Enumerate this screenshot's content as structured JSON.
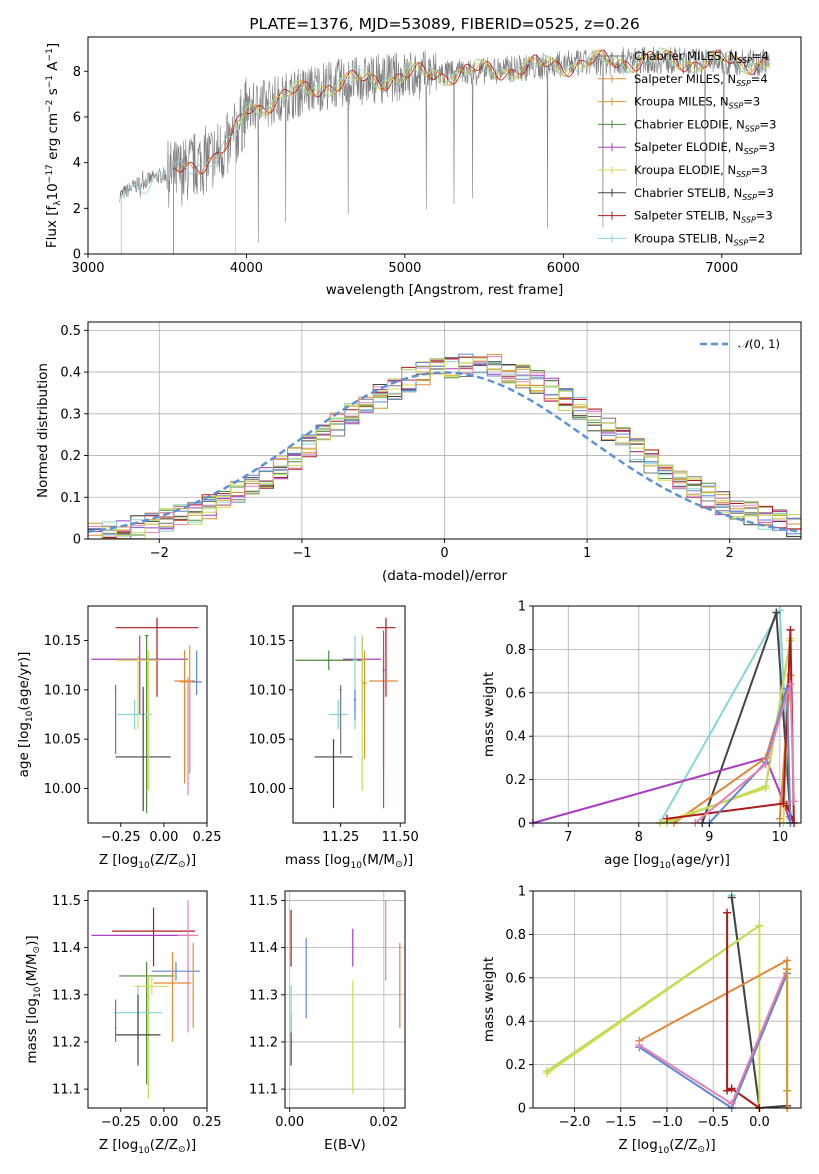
{
  "figure": {
    "title": "PLATE=1376, MJD=53089, FIBERID=0525, z=0.26"
  },
  "colors": {
    "Chabrier MILES": "#777777",
    "Salpeter MILES": "#e0893a",
    "Kroupa MILES": "#d49a26",
    "Chabrier ELODIE": "#4f8a3a",
    "Salpeter ELODIE": "#a93cc0",
    "Kroupa ELODIE": "#dada50",
    "Chabrier STELIB": "#444444",
    "Salpeter STELIB": "#b01a1a",
    "Kroupa STELIB": "#88d4d8",
    "extra_blue": "#5e86d4",
    "extra_pink": "#e77fb0",
    "extra_lime": "#bedc5a",
    "normal_curve": "#5b8fd6"
  },
  "chart_data": [
    {
      "id": "spectrum",
      "type": "line",
      "title": "PLATE=1376, MJD=53089, FIBERID=0525, z=0.26",
      "xlabel": "wavelength [Angstrom, rest frame]",
      "ylabel_parts": [
        "Flux [",
        "f",
        "λ",
        "10",
        "−17",
        " erg cm",
        "−2",
        " s",
        "−1",
        " A",
        "−1",
        "]"
      ],
      "xlim": [
        3000,
        7500
      ],
      "ylim": [
        0,
        9.5
      ],
      "xticks": [
        3000,
        4000,
        5000,
        6000,
        7000
      ],
      "yticks": [
        0,
        2,
        4,
        6,
        8
      ],
      "grid": false,
      "legend_position": "right",
      "legend": [
        {
          "name": "Chabrier MILES",
          "n": "4"
        },
        {
          "name": "Salpeter MILES",
          "n": "4"
        },
        {
          "name": "Kroupa MILES",
          "n": "3"
        },
        {
          "name": "Chabrier ELODIE",
          "n": "3"
        },
        {
          "name": "Salpeter ELODIE",
          "n": "3"
        },
        {
          "name": "Kroupa ELODIE",
          "n": "3"
        },
        {
          "name": "Chabrier STELIB",
          "n": "3"
        },
        {
          "name": "Salpeter STELIB",
          "n": "3"
        },
        {
          "name": "Kroupa STELIB",
          "n": "2"
        }
      ],
      "continuum": [
        [
          3210,
          2.6
        ],
        [
          3300,
          3.0
        ],
        [
          3400,
          3.3
        ],
        [
          3500,
          3.5
        ],
        [
          3600,
          3.6
        ],
        [
          3700,
          4.0
        ],
        [
          3800,
          4.3
        ],
        [
          3900,
          4.8
        ],
        [
          4000,
          6.3
        ],
        [
          4200,
          6.8
        ],
        [
          4500,
          7.4
        ],
        [
          5000,
          7.8
        ],
        [
          5500,
          8.0
        ],
        [
          6000,
          8.3
        ],
        [
          6500,
          8.5
        ],
        [
          7000,
          8.4
        ],
        [
          7300,
          8.4
        ]
      ],
      "spectrum_start": [
        3210,
        3540,
        3930,
        3200
      ],
      "spectrum_end": 7300
    },
    {
      "id": "residual-histogram",
      "type": "step",
      "xlabel": "(data-model)/error",
      "ylabel": "Normed distribution",
      "xlim": [
        -2.5,
        2.5
      ],
      "ylim": [
        0,
        0.52
      ],
      "xticks": [
        -2,
        -1,
        0,
        1,
        2
      ],
      "yticks": [
        0.0,
        0.1,
        0.2,
        0.3,
        0.4,
        0.5
      ],
      "grid": true,
      "legend_position": "upper right",
      "legend": [
        {
          "name_parts": [
            "𝒩",
            "(0, 1)"
          ],
          "style": "dashed"
        }
      ],
      "bin_width": 0.1,
      "x_start": -2.5
    },
    {
      "id": "age-vs-metallicity",
      "type": "errorbar",
      "xlabel_parts": [
        "Z [log",
        "10",
        "(Z/Z",
        "⊙",
        ")]"
      ],
      "ylabel_parts": [
        "age  [log",
        "10",
        "(age/yr)]"
      ],
      "xlim": [
        -0.44,
        0.25
      ],
      "ylim": [
        9.965,
        10.185
      ],
      "xticks": [
        -0.25,
        0.0,
        0.25
      ],
      "xtick_labels": [
        "−0.25",
        "0.00",
        "0.25"
      ],
      "yticks": [
        10.0,
        10.05,
        10.1,
        10.15
      ],
      "ytick_labels": [
        "10.00",
        "10.05",
        "10.10",
        "10.15"
      ],
      "grid": false,
      "points": [
        {
          "x": -0.04,
          "y": 10.163,
          "xerr": 0.24,
          "ylo": 10.093,
          "yhi": 10.173,
          "c": "Salpeter STELIB"
        },
        {
          "x": -0.14,
          "y": 10.131,
          "xerr": 0.28,
          "ylo": 10.075,
          "yhi": 10.155,
          "c": "Salpeter ELODIE"
        },
        {
          "x": -0.1,
          "y": 10.155,
          "xerr": 0.01,
          "ylo": 9.975,
          "yhi": 10.155,
          "c": "Chabrier ELODIE"
        },
        {
          "x": -0.15,
          "y": 10.13,
          "xerr": 0.13,
          "ylo": 10.06,
          "yhi": 10.135,
          "c": "Kroupa ELODIE"
        },
        {
          "x": 0.15,
          "y": 10.108,
          "xerr": 0.06,
          "ylo": 10.015,
          "yhi": 10.145,
          "c": "Kroupa MILES"
        },
        {
          "x": 0.12,
          "y": 10.109,
          "xerr": 0.06,
          "ylo": 10.005,
          "yhi": 10.14,
          "c": "Salpeter MILES"
        },
        {
          "x": 0.19,
          "y": 10.108,
          "xerr": 0.03,
          "ylo": 10.095,
          "yhi": 10.14,
          "c": "extra_blue"
        },
        {
          "x": -0.17,
          "y": 10.075,
          "xerr": 0.1,
          "ylo": 10.06,
          "yhi": 10.09,
          "c": "Kroupa STELIB"
        },
        {
          "x": -0.28,
          "y": 10.1,
          "xerr": 0.005,
          "ylo": 10.035,
          "yhi": 10.105,
          "c": "Chabrier MILES"
        },
        {
          "x": -0.12,
          "y": 10.032,
          "xerr": 0.16,
          "ylo": 9.977,
          "yhi": 10.103,
          "c": "Chabrier STELIB"
        },
        {
          "x": 0.14,
          "y": 10.109,
          "xerr": 0.005,
          "ylo": 9.993,
          "yhi": 10.113,
          "c": "extra_pink"
        },
        {
          "x": -0.09,
          "y": 10.103,
          "xerr": 0.005,
          "ylo": 9.998,
          "yhi": 10.14,
          "c": "extra_lime"
        }
      ]
    },
    {
      "id": "age-vs-mass",
      "type": "errorbar",
      "xlabel_parts": [
        "mass [log",
        "10",
        "(M/M",
        "⊙",
        ")]"
      ],
      "xlim": [
        11.05,
        11.52
      ],
      "ylim": [
        9.965,
        10.185
      ],
      "xticks": [
        11.25,
        11.5
      ],
      "xtick_labels": [
        "11.25",
        "11.50"
      ],
      "yticks": [
        10.0,
        10.05,
        10.1,
        10.15
      ],
      "ytick_labels": [
        "10.00",
        "10.05",
        "10.10",
        "10.15"
      ],
      "grid": false,
      "points": [
        {
          "x": 11.44,
          "y": 10.163,
          "xerr": 0.04,
          "ylo": 10.093,
          "yhi": 10.173,
          "c": "Salpeter STELIB"
        },
        {
          "x": 11.34,
          "y": 10.131,
          "xerr": 0.08,
          "ylo": 10.075,
          "yhi": 10.155,
          "c": "Salpeter ELODIE"
        },
        {
          "x": 11.2,
          "y": 10.13,
          "xerr": 0.14,
          "ylo": 10.12,
          "yhi": 10.14,
          "c": "Chabrier ELODIE"
        },
        {
          "x": 11.31,
          "y": 10.13,
          "xerr": 0.01,
          "ylo": 10.06,
          "yhi": 10.155,
          "c": "Kroupa STELIB"
        },
        {
          "x": 11.43,
          "y": 10.109,
          "xerr": 0.06,
          "ylo": 10.02,
          "yhi": 10.14,
          "c": "Salpeter MILES"
        },
        {
          "x": 11.35,
          "y": 10.107,
          "xerr": 0.01,
          "ylo": 10.03,
          "yhi": 10.14,
          "c": "Kroupa MILES"
        },
        {
          "x": 11.24,
          "y": 10.075,
          "xerr": 0.04,
          "ylo": 10.06,
          "yhi": 10.09,
          "c": "Kroupa STELIB"
        },
        {
          "x": 11.25,
          "y": 10.1,
          "xerr": 0.005,
          "ylo": 10.035,
          "yhi": 10.105,
          "c": "Chabrier MILES"
        },
        {
          "x": 11.22,
          "y": 10.032,
          "xerr": 0.08,
          "ylo": 9.98,
          "yhi": 10.05,
          "c": "Chabrier STELIB"
        },
        {
          "x": 11.34,
          "y": 10.11,
          "xerr": 0.005,
          "ylo": 9.998,
          "yhi": 10.155,
          "c": "extra_lime"
        },
        {
          "x": 11.43,
          "y": 10.12,
          "xerr": 0.005,
          "ylo": 9.98,
          "yhi": 10.16,
          "c": "Salpeter ELODIE"
        },
        {
          "x": 11.31,
          "y": 10.09,
          "xerr": 0.005,
          "ylo": 10.07,
          "yhi": 10.1,
          "c": "extra_blue"
        }
      ]
    },
    {
      "id": "mass-weight-vs-age",
      "type": "line",
      "xlabel_parts": [
        "age  [log",
        "10",
        "(age/yr)]"
      ],
      "ylabel": "mass weight",
      "xlim": [
        6.5,
        10.3
      ],
      "ylim": [
        0,
        1
      ],
      "xticks": [
        7,
        8,
        9,
        10
      ],
      "yticks": [
        0.0,
        0.2,
        0.4,
        0.6,
        0.8,
        1.0
      ],
      "grid": true,
      "series": [
        {
          "c": "Kroupa STELIB",
          "x": [
            8.3,
            10.0,
            10.15
          ],
          "y": [
            0.0,
            0.98,
            0.02
          ]
        },
        {
          "c": "Chabrier STELIB",
          "x": [
            8.9,
            9.95,
            10.15
          ],
          "y": [
            0.0,
            0.97,
            0.03
          ]
        },
        {
          "c": "Salpeter ELODIE",
          "x": [
            6.5,
            9.8,
            10.05,
            10.15
          ],
          "y": [
            0.0,
            0.3,
            0.1,
            0.0
          ]
        },
        {
          "c": "Salpeter MILES",
          "x": [
            8.5,
            9.8,
            10.15,
            10.0
          ],
          "y": [
            0.0,
            0.3,
            0.68,
            0.02
          ]
        },
        {
          "c": "Kroupa ELODIE",
          "x": [
            8.3,
            9.8,
            10.15,
            10.05
          ],
          "y": [
            0.0,
            0.16,
            0.85,
            0.0
          ]
        },
        {
          "c": "extra_lime",
          "x": [
            8.4,
            9.8,
            10.15
          ],
          "y": [
            0.0,
            0.17,
            0.84
          ]
        },
        {
          "c": "Salpeter STELIB",
          "x": [
            8.4,
            10.05,
            10.15,
            10.2,
            10.1
          ],
          "y": [
            0.02,
            0.09,
            0.89,
            0.0,
            0.08
          ]
        },
        {
          "c": "extra_blue",
          "x": [
            9.0,
            9.8,
            10.1,
            10.15
          ],
          "y": [
            0.0,
            0.28,
            0.62,
            0.0
          ]
        },
        {
          "c": "extra_pink",
          "x": [
            8.8,
            9.8,
            10.15,
            10.2
          ],
          "y": [
            0.0,
            0.27,
            0.64,
            0.1
          ]
        }
      ]
    },
    {
      "id": "mass-vs-metallicity",
      "type": "errorbar",
      "xlabel_parts": [
        "Z [log",
        "10",
        "(Z/Z",
        "⊙",
        ")]"
      ],
      "ylabel_parts": [
        "mass [log",
        "10",
        "(M/M",
        "⊙",
        ")]"
      ],
      "xlim": [
        -0.44,
        0.25
      ],
      "ylim": [
        11.06,
        11.52
      ],
      "xticks": [
        -0.25,
        0.0,
        0.25
      ],
      "xtick_labels": [
        "−0.25",
        "0.00",
        "0.25"
      ],
      "yticks": [
        11.1,
        11.2,
        11.3,
        11.4,
        11.5
      ],
      "ytick_labels": [
        "11.1",
        "11.2",
        "11.3",
        "11.4",
        "11.5"
      ],
      "grid": false,
      "points": [
        {
          "x": -0.06,
          "y": 11.435,
          "xerr": 0.24,
          "ylo": 11.36,
          "yhi": 11.485,
          "c": "Salpeter STELIB"
        },
        {
          "x": -0.14,
          "y": 11.426,
          "xerr": 0.28,
          "ylo": 11.43,
          "yhi": 11.43,
          "c": "Salpeter ELODIE"
        },
        {
          "x": 0.14,
          "y": 11.426,
          "xerr": 0.06,
          "ylo": 11.22,
          "yhi": 11.5,
          "c": "extra_pink"
        },
        {
          "x": 0.07,
          "y": 11.35,
          "xerr": 0.14,
          "ylo": 11.33,
          "yhi": 11.37,
          "c": "extra_blue"
        },
        {
          "x": -0.1,
          "y": 11.34,
          "xerr": 0.16,
          "ylo": 11.11,
          "yhi": 11.37,
          "c": "Chabrier ELODIE"
        },
        {
          "x": 0.05,
          "y": 11.325,
          "xerr": 0.11,
          "ylo": 11.2,
          "yhi": 11.39,
          "c": "Salpeter MILES"
        },
        {
          "x": -0.07,
          "y": 11.318,
          "xerr": 0.1,
          "ylo": 11.3,
          "yhi": 11.34,
          "c": "Kroupa ELODIE"
        },
        {
          "x": -0.09,
          "y": 11.3,
          "xerr": 0.005,
          "ylo": 11.08,
          "yhi": 11.34,
          "c": "extra_lime"
        },
        {
          "x": -0.15,
          "y": 11.262,
          "xerr": 0.14,
          "ylo": 11.2,
          "yhi": 11.32,
          "c": "Kroupa STELIB"
        },
        {
          "x": -0.15,
          "y": 11.215,
          "xerr": 0.13,
          "ylo": 11.15,
          "yhi": 11.3,
          "c": "Chabrier STELIB"
        },
        {
          "x": -0.28,
          "y": 11.23,
          "xerr": 0.005,
          "ylo": 11.2,
          "yhi": 11.29,
          "c": "Chabrier MILES"
        },
        {
          "x": 0.17,
          "y": 11.3,
          "xerr": 0.005,
          "ylo": 11.23,
          "yhi": 11.41,
          "c": "Kroupa MILES"
        }
      ]
    },
    {
      "id": "mass-vs-ebv",
      "type": "errorbar",
      "xlabel": "E(B-V)",
      "xlim": [
        -0.001,
        0.0245
      ],
      "ylim": [
        11.06,
        11.52
      ],
      "xticks": [
        0.0,
        0.02
      ],
      "xtick_labels": [
        "0.00",
        "0.02"
      ],
      "yticks": [
        11.1,
        11.2,
        11.3,
        11.4,
        11.5
      ],
      "ytick_labels": [
        "11.1",
        "11.2",
        "11.3",
        "11.4",
        "11.5"
      ],
      "grid": true,
      "points": [
        {
          "x": 0.0003,
          "y": 11.42,
          "xerr": 0,
          "ylo": 11.36,
          "yhi": 11.48,
          "c": "Salpeter STELIB"
        },
        {
          "x": 0.0003,
          "y": 11.2,
          "xerr": 0,
          "ylo": 11.15,
          "yhi": 11.26,
          "c": "Chabrier STELIB"
        },
        {
          "x": 0.0003,
          "y": 11.27,
          "xerr": 0,
          "ylo": 11.22,
          "yhi": 11.32,
          "c": "Kroupa STELIB"
        },
        {
          "x": 0.0035,
          "y": 11.34,
          "xerr": 0,
          "ylo": 11.25,
          "yhi": 11.42,
          "c": "extra_blue"
        },
        {
          "x": 0.0134,
          "y": 11.4,
          "xerr": 0,
          "ylo": 11.36,
          "yhi": 11.44,
          "c": "Salpeter ELODIE"
        },
        {
          "x": 0.0134,
          "y": 11.22,
          "xerr": 0,
          "ylo": 11.09,
          "yhi": 11.33,
          "c": "Kroupa ELODIE"
        },
        {
          "x": 0.0204,
          "y": 11.42,
          "xerr": 0,
          "ylo": 11.33,
          "yhi": 11.5,
          "c": "extra_pink"
        },
        {
          "x": 0.0234,
          "y": 11.32,
          "xerr": 0,
          "ylo": 11.23,
          "yhi": 11.41,
          "c": "Salpeter MILES"
        }
      ]
    },
    {
      "id": "mass-weight-vs-metallicity",
      "type": "line",
      "xlabel_parts": [
        "Z [log",
        "10",
        "(Z/Z",
        "⊙",
        ")]"
      ],
      "ylabel": "mass weight",
      "xlim": [
        -2.45,
        0.45
      ],
      "ylim": [
        0,
        1
      ],
      "xticks": [
        -2.0,
        -1.5,
        -1.0,
        -0.5,
        0.0
      ],
      "xtick_labels": [
        "−2.0",
        "−1.5",
        "−1.0",
        "−0.5",
        "0.0"
      ],
      "yticks": [
        0.0,
        0.2,
        0.4,
        0.6,
        0.8,
        1.0
      ],
      "grid": true,
      "series": [
        {
          "c": "Kroupa STELIB",
          "x": [
            -0.3,
            0.0
          ],
          "y": [
            0.98,
            0.0
          ]
        },
        {
          "c": "Chabrier STELIB",
          "x": [
            -0.3,
            0.0,
            0.3
          ],
          "y": [
            0.97,
            0.0,
            0.01
          ]
        },
        {
          "c": "Kroupa ELODIE",
          "x": [
            -2.3,
            0.0,
            0.0
          ],
          "y": [
            0.16,
            0.84,
            0.0
          ]
        },
        {
          "c": "extra_lime",
          "x": [
            -2.3,
            0.0
          ],
          "y": [
            0.17,
            0.84
          ]
        },
        {
          "c": "Salpeter MILES",
          "x": [
            -1.3,
            0.3,
            0.3
          ],
          "y": [
            0.31,
            0.68,
            0.0
          ]
        },
        {
          "c": "Salpeter STELIB",
          "x": [
            -0.35,
            -0.35,
            -0.3,
            0.0
          ],
          "y": [
            0.9,
            0.08,
            0.09,
            0.0
          ]
        },
        {
          "c": "extra_blue",
          "x": [
            -1.3,
            -0.3,
            0.3
          ],
          "y": [
            0.28,
            0.0,
            0.62
          ]
        },
        {
          "c": "extra_pink",
          "x": [
            -1.3,
            -0.3,
            0.3
          ],
          "y": [
            0.29,
            0.02,
            0.64
          ]
        },
        {
          "c": "Kroupa MILES",
          "x": [
            0.3,
            0.3
          ],
          "y": [
            0.64,
            0.08
          ]
        }
      ]
    }
  ]
}
